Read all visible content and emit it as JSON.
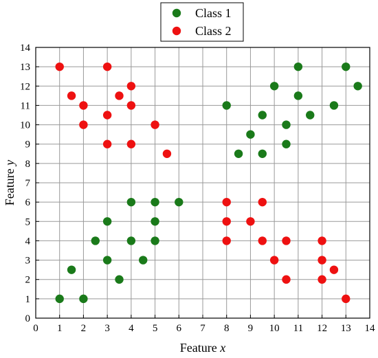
{
  "chart_data": {
    "type": "scatter",
    "title": "",
    "xlabel_main": "Feature ",
    "xlabel_var": "x",
    "ylabel_main": "Feature ",
    "ylabel_var": "y",
    "xlim": [
      0,
      14
    ],
    "ylim": [
      0,
      14
    ],
    "xticks": [
      0,
      1,
      2,
      3,
      4,
      5,
      6,
      7,
      8,
      9,
      10,
      11,
      12,
      13,
      14
    ],
    "yticks": [
      0,
      1,
      2,
      3,
      4,
      5,
      6,
      7,
      8,
      9,
      10,
      11,
      12,
      13,
      14
    ],
    "grid": true,
    "legend_placement": "top-center-outside",
    "series": [
      {
        "name": "Class 1",
        "color": "#1a7a1a",
        "points": [
          [
            1,
            1
          ],
          [
            2,
            1
          ],
          [
            1.5,
            2.5
          ],
          [
            3.5,
            2
          ],
          [
            3,
            3
          ],
          [
            4.5,
            3
          ],
          [
            2.5,
            4
          ],
          [
            4,
            4
          ],
          [
            5,
            4
          ],
          [
            3,
            5
          ],
          [
            5,
            5
          ],
          [
            4,
            6
          ],
          [
            5,
            6
          ],
          [
            6,
            6
          ],
          [
            8,
            11
          ],
          [
            8.5,
            8.5
          ],
          [
            9,
            9.5
          ],
          [
            9.5,
            8.5
          ],
          [
            9.5,
            10.5
          ],
          [
            10,
            12
          ],
          [
            10.5,
            10
          ],
          [
            10.5,
            9
          ],
          [
            11,
            13
          ],
          [
            11,
            11.5
          ],
          [
            11.5,
            10.5
          ],
          [
            12.5,
            11
          ],
          [
            13,
            13
          ],
          [
            13.5,
            12
          ]
        ]
      },
      {
        "name": "Class 2",
        "color": "#ee1111",
        "points": [
          [
            1,
            13
          ],
          [
            3,
            13
          ],
          [
            1.5,
            11.5
          ],
          [
            2,
            11
          ],
          [
            2,
            10
          ],
          [
            3,
            10.5
          ],
          [
            3,
            9
          ],
          [
            3.5,
            11.5
          ],
          [
            4,
            12
          ],
          [
            4,
            11
          ],
          [
            4,
            9
          ],
          [
            5,
            10
          ],
          [
            5.5,
            8.5
          ],
          [
            8,
            6
          ],
          [
            8,
            5
          ],
          [
            8,
            4
          ],
          [
            9,
            5
          ],
          [
            9.5,
            6
          ],
          [
            9.5,
            4
          ],
          [
            10,
            3
          ],
          [
            10.5,
            4
          ],
          [
            10.5,
            2
          ],
          [
            12,
            4
          ],
          [
            12,
            3
          ],
          [
            12,
            2
          ],
          [
            12.5,
            2.5
          ],
          [
            13,
            1
          ]
        ]
      }
    ]
  }
}
